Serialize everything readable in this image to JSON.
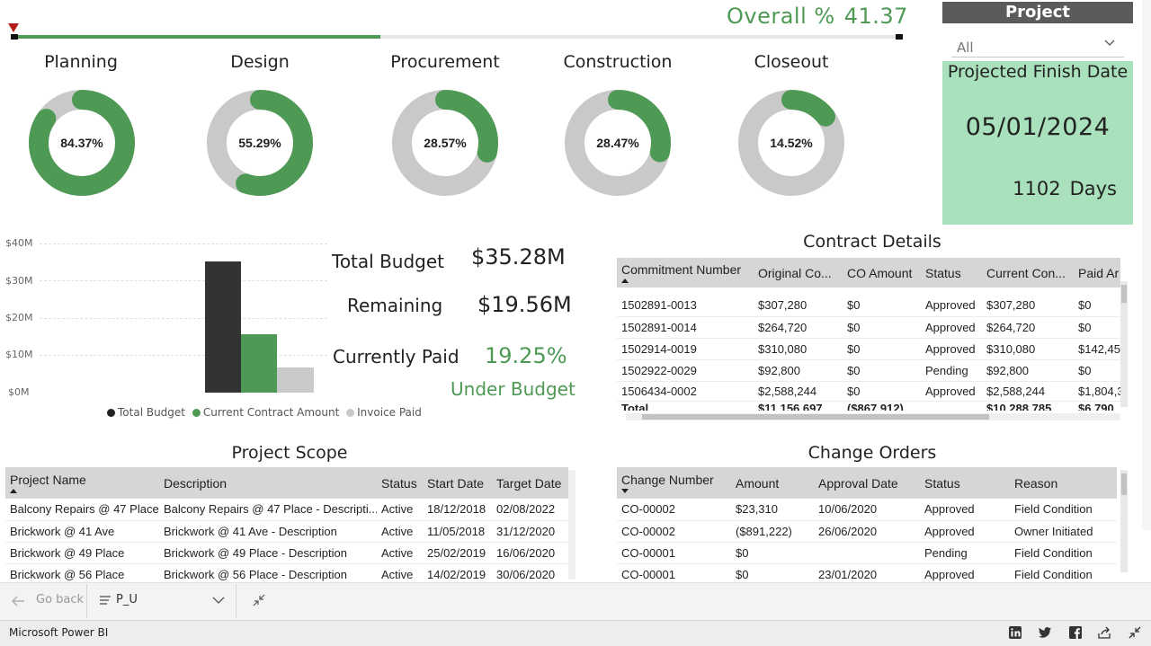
{
  "overall": {
    "label": "Overall %",
    "value": "41.37",
    "fraction": 0.4137
  },
  "phases": [
    {
      "name": "Planning",
      "pct_label": "84.37%",
      "pct": 0.8437
    },
    {
      "name": "Design",
      "pct_label": "55.29%",
      "pct": 0.5529
    },
    {
      "name": "Procurement",
      "pct_label": "28.57%",
      "pct": 0.2857
    },
    {
      "name": "Construction",
      "pct_label": "28.47%",
      "pct": 0.2847
    },
    {
      "name": "Closeout",
      "pct_label": "14.52%",
      "pct": 0.1452
    }
  ],
  "colors": {
    "green": "#4e9a55",
    "grey": "#c9c9c9",
    "dark": "#333333",
    "card": "#a8e1bc",
    "marker": "#b31b1b"
  },
  "project_slicer": {
    "title": "Project",
    "value": "All"
  },
  "finish": {
    "title": "Projected Finish Date",
    "date": "05/01/2024",
    "days": "1102",
    "days_unit": "Days"
  },
  "budget_chart": {
    "type": "bar",
    "yticks": [
      "$40M",
      "$30M",
      "$20M",
      "$10M",
      "$0M"
    ],
    "ylim": [
      0,
      40
    ],
    "series": [
      {
        "name": "Total Budget",
        "value": 35.28,
        "color": "#333333"
      },
      {
        "name": "Current Contract Amount",
        "value": 15.7,
        "color": "#4e9a55"
      },
      {
        "name": "Invoice Paid",
        "value": 6.8,
        "color": "#c9c9c9"
      }
    ]
  },
  "kpis": {
    "total_budget_label": "Total Budget",
    "total_budget": "$35.28M",
    "remaining_label": "Remaining",
    "remaining": "$19.56M",
    "paid_label": "Currently Paid",
    "paid": "19.25%",
    "status": "Under Budget"
  },
  "contract": {
    "title": "Contract Details",
    "columns": [
      "Commitment Number",
      "Original Co...",
      "CO Amount",
      "Status",
      "Current Con...",
      "Paid Ar"
    ],
    "rows": [
      [
        "1502891-0013",
        "$307,280",
        "$0",
        "Approved",
        "$307,280",
        "$0"
      ],
      [
        "1502891-0014",
        "$264,720",
        "$0",
        "Approved",
        "$264,720",
        "$0"
      ],
      [
        "1502914-0019",
        "$310,080",
        "$0",
        "Approved",
        "$310,080",
        "$142,45"
      ],
      [
        "1502922-0029",
        "$92,800",
        "$0",
        "Pending",
        "$92,800",
        "$0"
      ],
      [
        "1506434-0002",
        "$2,588,244",
        "$0",
        "Approved",
        "$2,588,244",
        "$1,804,3"
      ]
    ],
    "total": [
      "Total",
      "$11,156,697",
      "($867,912)",
      "",
      "$10,288,785",
      "$6,790,"
    ]
  },
  "scope": {
    "title": "Project Scope",
    "columns": [
      "Project Name",
      "Description",
      "Status",
      "Start Date",
      "Target Date"
    ],
    "rows": [
      [
        "Balcony Repairs @ 47 Place",
        "Balcony Repairs @ 47 Place - Descripti...",
        "Active",
        "18/12/2018",
        "02/08/2022"
      ],
      [
        "Brickwork @ 41 Ave",
        "Brickwork @ 41 Ave - Description",
        "Active",
        "11/05/2018",
        "31/12/2020"
      ],
      [
        "Brickwork @ 49 Place",
        "Brickwork @ 49 Place - Description",
        "Active",
        "25/02/2019",
        "16/06/2020"
      ],
      [
        "Brickwork @ 56 Place",
        "Brickwork @ 56 Place - Description",
        "Active",
        "14/02/2019",
        "30/06/2020"
      ]
    ]
  },
  "change_orders": {
    "title": "Change Orders",
    "columns": [
      "Change Number",
      "Amount",
      "Approval Date",
      "Status",
      "Reason"
    ],
    "rows": [
      [
        "CO-00002",
        "$23,310",
        "10/06/2020",
        "Approved",
        "Field Condition"
      ],
      [
        "CO-00002",
        "($891,222)",
        "26/06/2020",
        "Approved",
        "Owner Initiated"
      ],
      [
        "CO-00001",
        "$0",
        "",
        "Pending",
        "Field Condition"
      ],
      [
        "CO-00001",
        "$0",
        "23/01/2020",
        "Approved",
        "Field Condition"
      ]
    ]
  },
  "nav": {
    "back": "Go back",
    "page": "P_U"
  },
  "status_bar": {
    "brand": "Microsoft Power BI",
    "icons": [
      "linkedin-icon",
      "twitter-icon",
      "facebook-icon",
      "share-icon",
      "fullscreen-icon"
    ]
  }
}
